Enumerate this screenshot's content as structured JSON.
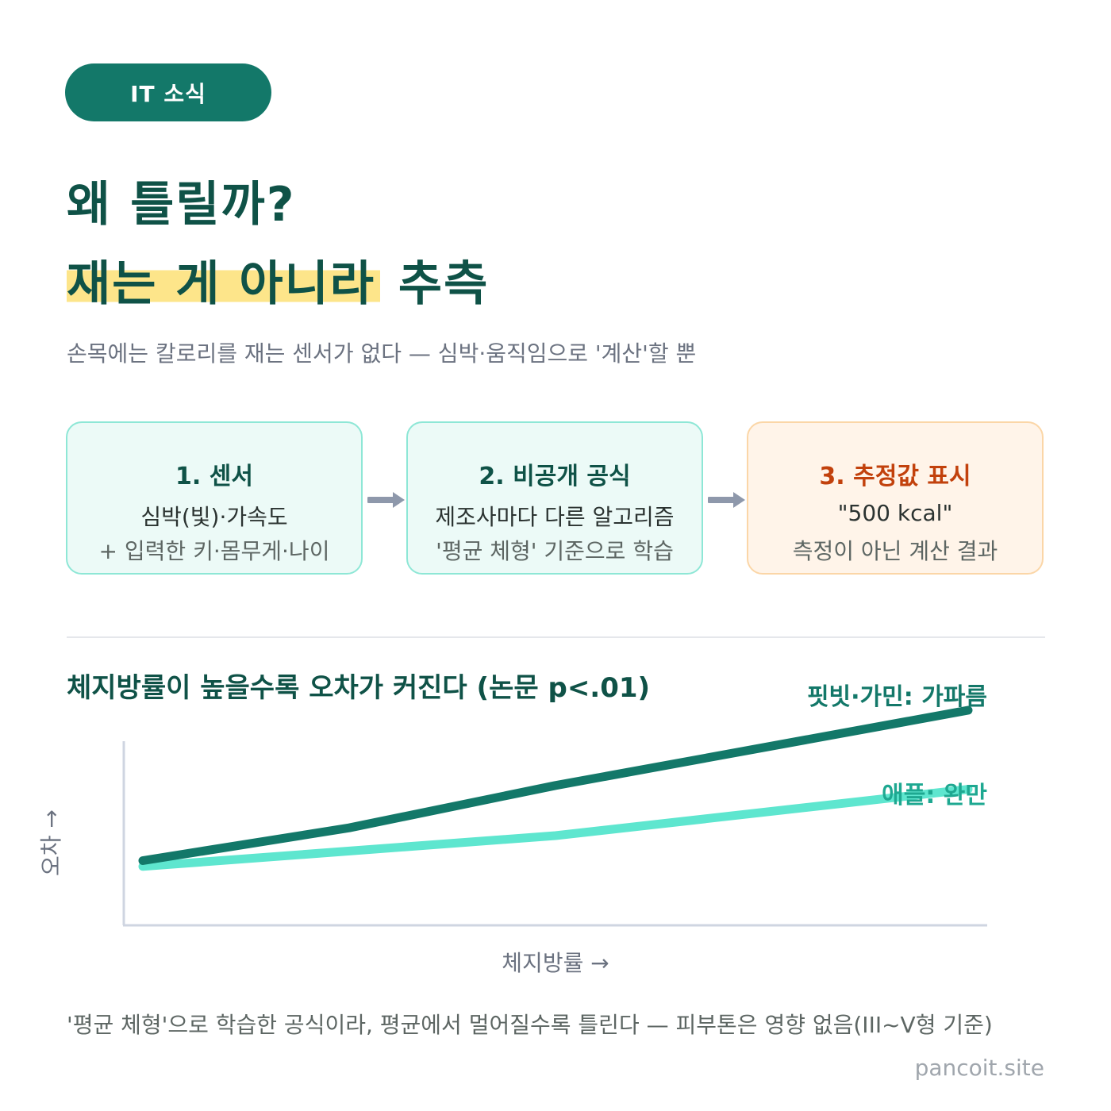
{
  "badge": {
    "label": "IT 소식"
  },
  "headline": {
    "line1": "왜 틀릴까?",
    "line2_highlight": "재는 게 아니라",
    "line2_rest": " 추측"
  },
  "subtitle": "손목에는 칼로리를 재는 센서가 없다 — 심박·움직임으로 '계산'할 뿐",
  "steps": [
    {
      "title": "1. 센서",
      "line1": "심박(빛)·가속도",
      "line2": "+ 입력한 키·몸무게·나이"
    },
    {
      "title": "2. 비공개 공식",
      "line1": "제조사마다 다른 알고리즘",
      "line2": "'평균 체형' 기준으로 학습"
    },
    {
      "title": "3. 추정값 표시",
      "line1": "\"500 kcal\"",
      "line2": "측정이 아닌 계산 결과"
    }
  ],
  "colors": {
    "primary": "#137869",
    "accent_light": "#5ee6cf",
    "highlight": "#fde58a",
    "warning": "#c2410c"
  },
  "chart_data": {
    "type": "line",
    "title": "체지방률이 높을수록 오차가 커진다 (논문 p<.01)",
    "xlabel": "체지방률 →",
    "ylabel": "오차 →",
    "xlim": [
      0,
      1
    ],
    "ylim": [
      0,
      1
    ],
    "grid": false,
    "series": [
      {
        "name": "핏빗·가민: 가파름",
        "color": "#137869",
        "x": [
          0,
          0.25,
          0.5,
          1.0
        ],
        "y": [
          0.22,
          0.39,
          0.61,
          1.0
        ]
      },
      {
        "name": "애플: 완만",
        "color": "#5ee6cf",
        "x": [
          0,
          0.5,
          1.0
        ],
        "y": [
          0.19,
          0.35,
          0.59
        ]
      }
    ]
  },
  "footnote": "'평균 체형'으로 학습한 공식이라, 평균에서 멀어질수록 틀린다 — 피부톤은 영향 없음(III~V형 기준)",
  "source": "pancoit.site"
}
